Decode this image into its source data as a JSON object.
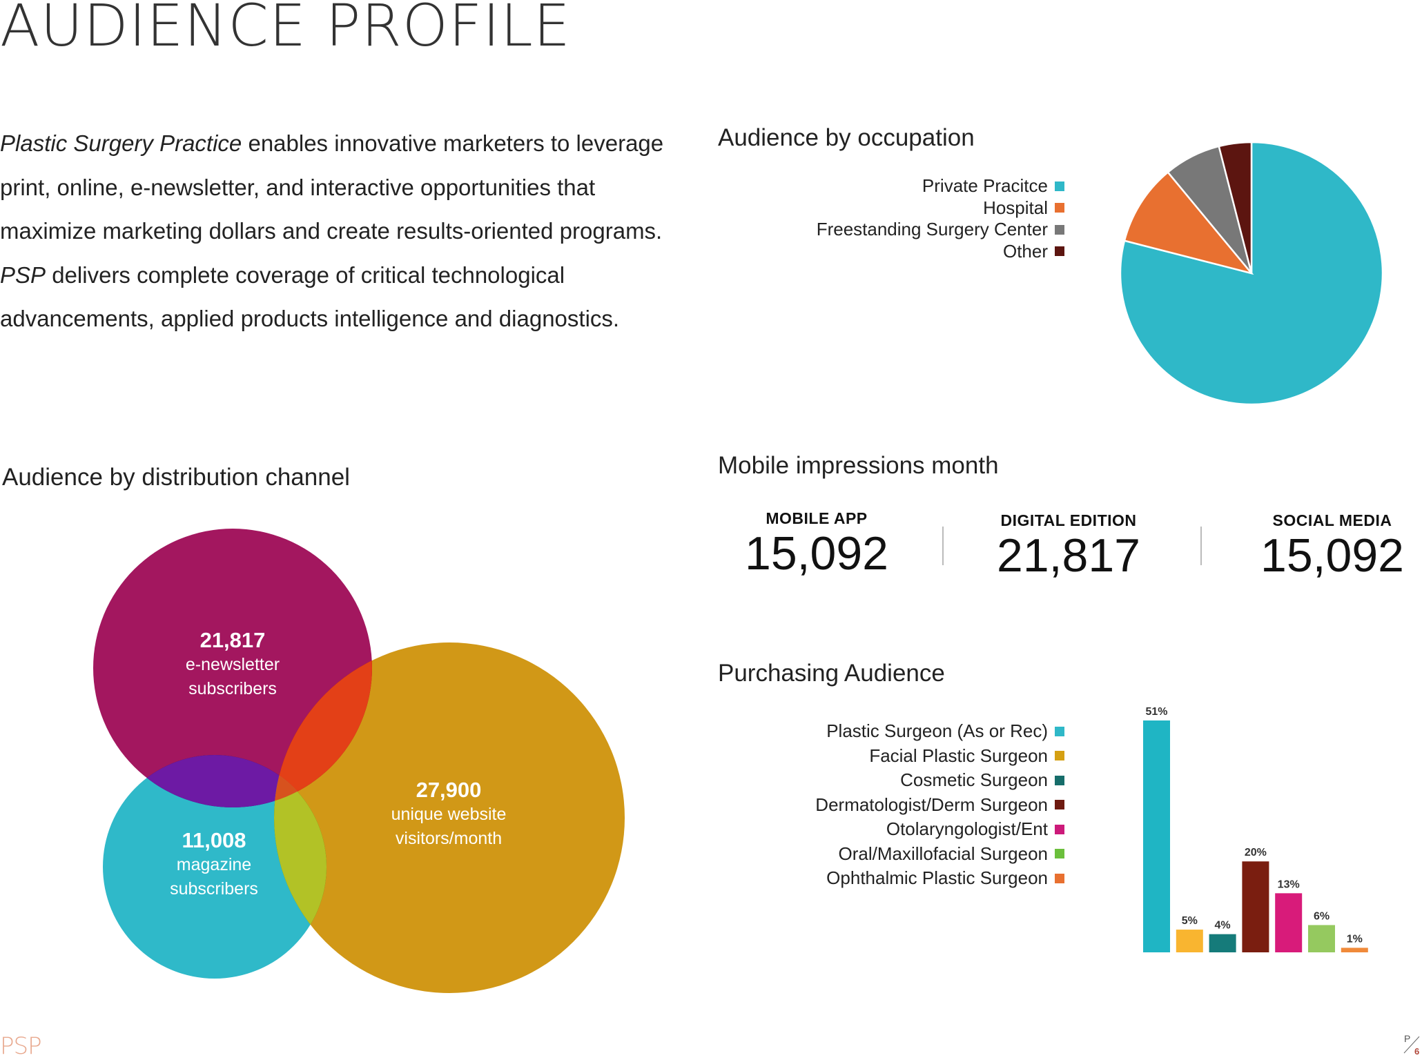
{
  "page": {
    "title": "AUDIENCE PROFILE",
    "intro": {
      "p1_em": "Plastic Surgery Practice",
      "p1_rest": " enables innovative marketers to leverage print, online, e-newsletter, and interactive opportunities that maximize marketing dollars and create results-oriented programs. ",
      "p2_em": "PSP",
      "p2_rest": " delivers complete coverage of critical technological advancements, applied products intelligence and diagnostics."
    },
    "footer": {
      "logo": "PSP",
      "page_prefix": "P",
      "page_number": "6"
    }
  },
  "occupation": {
    "title": "Audience by occupation",
    "chart_data": {
      "type": "pie",
      "title": "Audience by occupation",
      "categories": [
        "Private Pracitce",
        "Hospital",
        "Freestanding Surgery Center",
        "Other"
      ],
      "values": [
        79,
        10,
        7,
        4
      ],
      "colors": [
        "#2fb8c8",
        "#e87030",
        "#787878",
        "#5c1510"
      ]
    }
  },
  "distribution": {
    "title": "Audience by distribution channel",
    "chart_data": {
      "type": "venn",
      "title": "Audience by distribution channel",
      "sets": [
        {
          "name": "e-newsletter",
          "value": "21,817",
          "label_line1": "e-newsletter",
          "label_line2": "subscribers",
          "color": "#a3175f"
        },
        {
          "name": "magazine",
          "value": "11,008",
          "label_line1": "magazine",
          "label_line2": "subscribers",
          "color": "#2fb9c9"
        },
        {
          "name": "website",
          "value": "27,900",
          "label_line1": "unique website",
          "label_line2": "visitors/month",
          "color": "#d19817"
        }
      ]
    }
  },
  "mobile": {
    "title": "Mobile impressions month",
    "stats": [
      {
        "label": "MOBILE APP",
        "value": "15,092"
      },
      {
        "label": "DIGITAL EDITION",
        "value": "21,817"
      },
      {
        "label": "SOCIAL MEDIA",
        "value": "15,092"
      }
    ]
  },
  "purchasing": {
    "title": "Purchasing Audience",
    "chart_data": {
      "type": "bar",
      "title": "Purchasing Audience",
      "categories": [
        "Plastic Surgeon (As or Rec)",
        "Facial Plastic Surgeon",
        "Cosmetic Surgeon",
        "Dermatologist/Derm Surgeon",
        "Otolaryngologist/Ent",
        "Oral/Maxillofacial Surgeon",
        "Ophthalmic Plastic Surgeon"
      ],
      "values": [
        51,
        5,
        4,
        20,
        13,
        6,
        1
      ],
      "value_labels": [
        "51%",
        "5%",
        "4%",
        "20%",
        "13%",
        "6%",
        "1%"
      ],
      "legend_colors": [
        "#2fb8c8",
        "#d5a013",
        "#166d6a",
        "#6e1a10",
        "#cc1a7a",
        "#6bbf3c",
        "#e87030"
      ],
      "bar_colors": [
        "#1fb5c4",
        "#f9b530",
        "#157b7a",
        "#7a1e10",
        "#d81b7a",
        "#95c95f",
        "#f08a3a"
      ],
      "ylim": [
        0,
        51
      ]
    }
  }
}
